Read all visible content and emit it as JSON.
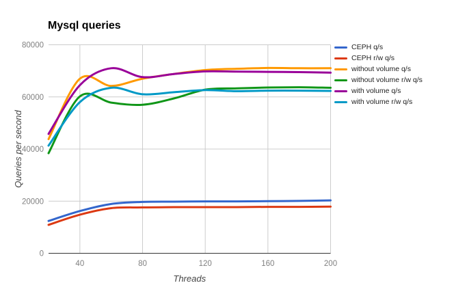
{
  "title": "Mysql queries",
  "chart_data": {
    "type": "line",
    "title": "Mysql queries",
    "xlabel": "Threads",
    "ylabel": "Queries per second",
    "x": [
      20,
      40,
      60,
      80,
      100,
      120,
      140,
      160,
      180,
      200
    ],
    "series": [
      {
        "name": "CEPH q/s",
        "color": "#3366CC",
        "values": [
          12400,
          16200,
          18900,
          19700,
          19800,
          19900,
          19900,
          20000,
          20100,
          20300
        ]
      },
      {
        "name": "CEPH r/w q/s",
        "color": "#DC3912",
        "values": [
          10900,
          14800,
          17300,
          17600,
          17700,
          17700,
          17700,
          17800,
          17800,
          17900
        ]
      },
      {
        "name": "without volume q/s",
        "color": "#FF9900",
        "values": [
          43800,
          67000,
          64200,
          67000,
          68800,
          70300,
          70800,
          71100,
          71000,
          71000
        ]
      },
      {
        "name": "without volume r/w q/s",
        "color": "#109618",
        "values": [
          38400,
          60200,
          57800,
          57000,
          59400,
          62800,
          63300,
          63600,
          63700,
          63500
        ]
      },
      {
        "name": "with volume q/s",
        "color": "#990099",
        "values": [
          45800,
          64500,
          71000,
          67600,
          68800,
          69800,
          69700,
          69600,
          69500,
          69300
        ]
      },
      {
        "name": "with volume r/w q/s",
        "color": "#0099C6",
        "values": [
          41300,
          58000,
          63500,
          61000,
          61800,
          62600,
          62200,
          62400,
          62400,
          62300
        ]
      }
    ],
    "xlim": [
      20,
      200
    ],
    "ylim": [
      0,
      80000
    ],
    "x_ticks": [
      40,
      80,
      120,
      160,
      200
    ],
    "y_ticks": [
      0,
      20000,
      40000,
      60000,
      80000
    ],
    "grid": true,
    "legend_position": "right",
    "smoothing": "function"
  },
  "colors": {
    "background": "#FFFFFF",
    "grid": "#CCCCCC",
    "axis_line": "#333333",
    "tick_text": "#808080",
    "axis_title_text": "#444444",
    "title_text": "#000000",
    "legend_text": "#222222"
  }
}
